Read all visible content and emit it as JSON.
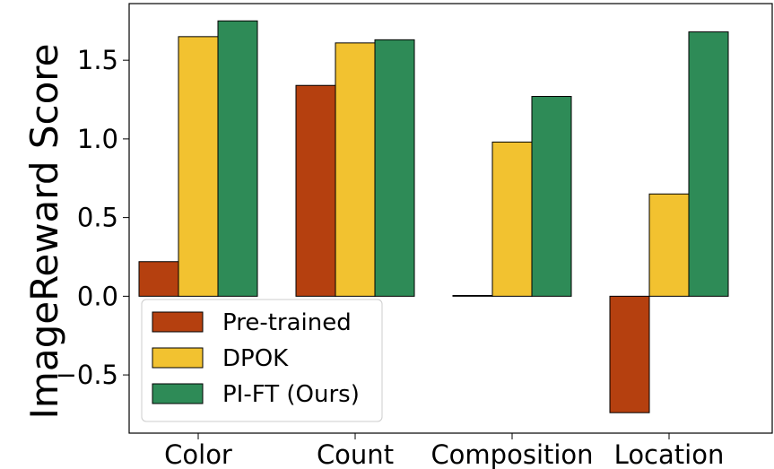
{
  "chart_data": {
    "type": "bar",
    "title": "",
    "xlabel": "",
    "ylabel": "ImageReward Score",
    "categories": [
      "Color",
      "Count",
      "Composition",
      "Location"
    ],
    "series": [
      {
        "name": "Pre-trained",
        "color": "#b5400f",
        "values": [
          0.22,
          1.34,
          0.005,
          -0.74
        ]
      },
      {
        "name": "DPOK",
        "color": "#f2c230",
        "values": [
          1.65,
          1.61,
          0.98,
          0.65
        ]
      },
      {
        "name": "PI-FT (Ours)",
        "color": "#2e8b57",
        "values": [
          1.75,
          1.63,
          1.27,
          1.68
        ]
      }
    ],
    "ylim": [
      -0.87,
      1.86
    ],
    "yticks": [
      "−0.5",
      "0.0",
      "0.5",
      "1.0",
      "1.5"
    ],
    "ytick_values": [
      -0.5,
      0.0,
      0.5,
      1.0,
      1.5
    ],
    "legend_position": "lower-left",
    "grid": false
  }
}
